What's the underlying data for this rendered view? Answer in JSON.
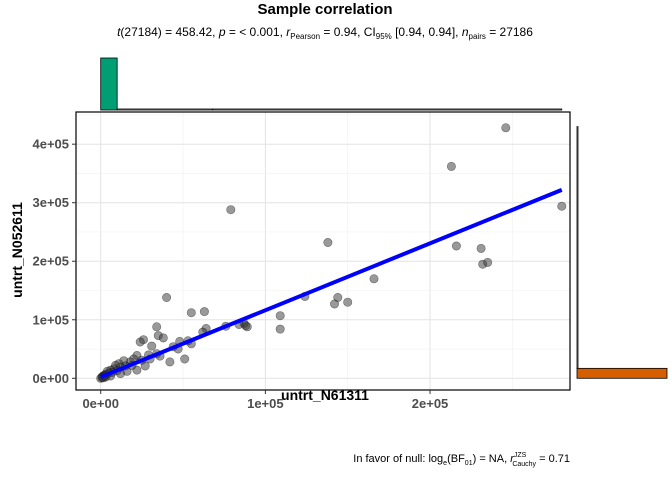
{
  "chart_data": {
    "type": "scatter",
    "title": "Sample correlation",
    "subtitle": {
      "stat": "t",
      "stat_df": "(27184)",
      "stat_value": " = 458.42, ",
      "p": "p",
      "p_value": " = < 0.001, ",
      "r": "r",
      "r_sub": "Pearson",
      "r_value": " = 0.94, CI",
      "ci_sub": "95%",
      "ci_value": " [0.94, 0.94], ",
      "n": "n",
      "n_sub": "pairs",
      "n_value": " = 27186"
    },
    "caption": {
      "prefix": "In favor of null: log",
      "log_sub": "e",
      "bf": "(BF",
      "bf_sub": "01",
      "bf_close": ") = NA, ",
      "r": "r",
      "r_sup": "JZS",
      "r_sub": "Cauchy",
      "r_value": " = 0.71"
    },
    "xlabel": "untrt_N61311",
    "ylabel": "untrt_N052611",
    "xlim": [
      -15000,
      285000
    ],
    "ylim": [
      -20000,
      455000
    ],
    "x_ticks": [
      0,
      100000,
      200000
    ],
    "x_tick_labels": [
      "0e+00",
      "1e+05",
      "2e+05"
    ],
    "y_ticks": [
      0,
      100000,
      200000,
      300000,
      400000
    ],
    "y_tick_labels": [
      "0e+00",
      "1e+05",
      "2e+05",
      "3e+05",
      "4e+05"
    ],
    "grid": true,
    "point_color": "#333333",
    "fit_color": "#0000ff",
    "x_hist_color": "#009E73",
    "y_hist_color": "#D55E00",
    "points": [
      [
        246000,
        428000
      ],
      [
        213000,
        362000
      ],
      [
        280000,
        294000
      ],
      [
        79000,
        288000
      ],
      [
        138000,
        232000
      ],
      [
        216000,
        226000
      ],
      [
        231000,
        222000
      ],
      [
        232000,
        195000
      ],
      [
        235000,
        198000
      ],
      [
        166000,
        170000
      ],
      [
        40000,
        138000
      ],
      [
        150000,
        130000
      ],
      [
        144000,
        138000
      ],
      [
        142000,
        127000
      ],
      [
        124000,
        140000
      ],
      [
        109000,
        107000
      ],
      [
        109000,
        84000
      ],
      [
        63000,
        114000
      ],
      [
        55000,
        112000
      ],
      [
        87000,
        94000
      ],
      [
        88000,
        90000
      ],
      [
        84000,
        92000
      ],
      [
        89000,
        88000
      ],
      [
        76000,
        89000
      ],
      [
        64000,
        85000
      ],
      [
        62000,
        79000
      ],
      [
        34000,
        88000
      ],
      [
        35000,
        73000
      ],
      [
        38000,
        69000
      ],
      [
        48000,
        63000
      ],
      [
        55000,
        59000
      ],
      [
        53000,
        64000
      ],
      [
        26000,
        66000
      ],
      [
        24000,
        62000
      ],
      [
        31000,
        55000
      ],
      [
        44000,
        54000
      ],
      [
        47000,
        50000
      ],
      [
        51000,
        33000
      ],
      [
        34000,
        42000
      ],
      [
        36000,
        38000
      ],
      [
        29000,
        40000
      ],
      [
        30000,
        33000
      ],
      [
        22000,
        39000
      ],
      [
        20000,
        33000
      ],
      [
        25000,
        31000
      ],
      [
        18000,
        28000
      ],
      [
        14000,
        30000
      ],
      [
        19000,
        22000
      ],
      [
        15000,
        21000
      ],
      [
        11000,
        25000
      ],
      [
        12000,
        19000
      ],
      [
        9000,
        22000
      ],
      [
        8000,
        16000
      ],
      [
        10000,
        13000
      ],
      [
        6000,
        14000
      ],
      [
        7000,
        10000
      ],
      [
        5000,
        9000
      ],
      [
        4000,
        12000
      ],
      [
        3000,
        7000
      ],
      [
        2000,
        5000
      ],
      [
        1000,
        3000
      ],
      [
        3000,
        2000
      ],
      [
        6000,
        4000
      ],
      [
        12000,
        8000
      ],
      [
        22000,
        14000
      ],
      [
        27000,
        21000
      ],
      [
        42000,
        28000
      ],
      [
        16000,
        12000
      ],
      [
        0,
        0
      ],
      [
        800,
        1500
      ],
      [
        1500,
        800
      ],
      [
        2500,
        4000
      ]
    ],
    "fit_line": [
      [
        0,
        2000
      ],
      [
        280000,
        322000
      ]
    ],
    "x_marginal_bins": [
      {
        "x0": 0,
        "x1": 10000,
        "count": 27000
      },
      {
        "x0": 10000,
        "x1": 68000,
        "count": 60
      },
      {
        "x0": 68000,
        "x1": 280000,
        "count": 8
      }
    ],
    "y_marginal_bins": [
      {
        "y0": 0,
        "y1": 17000,
        "count": 27000
      },
      {
        "y0": 17000,
        "y1": 430000,
        "count": 60
      }
    ]
  }
}
